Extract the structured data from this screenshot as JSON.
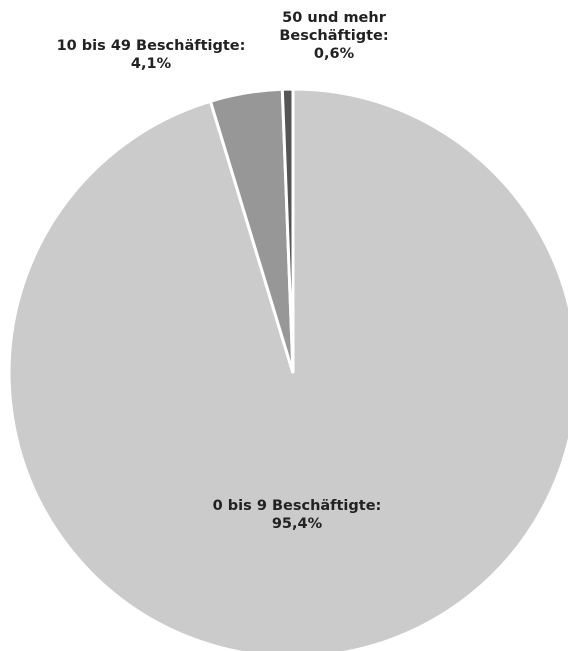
{
  "chart_data": {
    "type": "pie",
    "title": "",
    "slices": [
      {
        "name": "0 bis 9 Beschäftigte",
        "value": 95.4,
        "value_label": "95,4%",
        "color": "#cbcbcb"
      },
      {
        "name": "10 bis 49 Beschäftigte",
        "value": 4.1,
        "value_label": "4,1%",
        "color": "#979797"
      },
      {
        "name": "50 und mehr Beschäftigte",
        "value": 0.6,
        "value_label": "0,6%",
        "color": "#555555"
      }
    ],
    "start_angle": "12 o'clock",
    "direction": "clockwise",
    "labels": [
      {
        "lines": [
          "0 bis 9 Beschäftigte:",
          "95,4%"
        ]
      },
      {
        "lines": [
          "10 bis 49 Beschäftigte:",
          "4,1%"
        ]
      },
      {
        "lines": [
          "50 und mehr",
          "Beschäftigte:",
          "0,6%"
        ]
      }
    ]
  }
}
